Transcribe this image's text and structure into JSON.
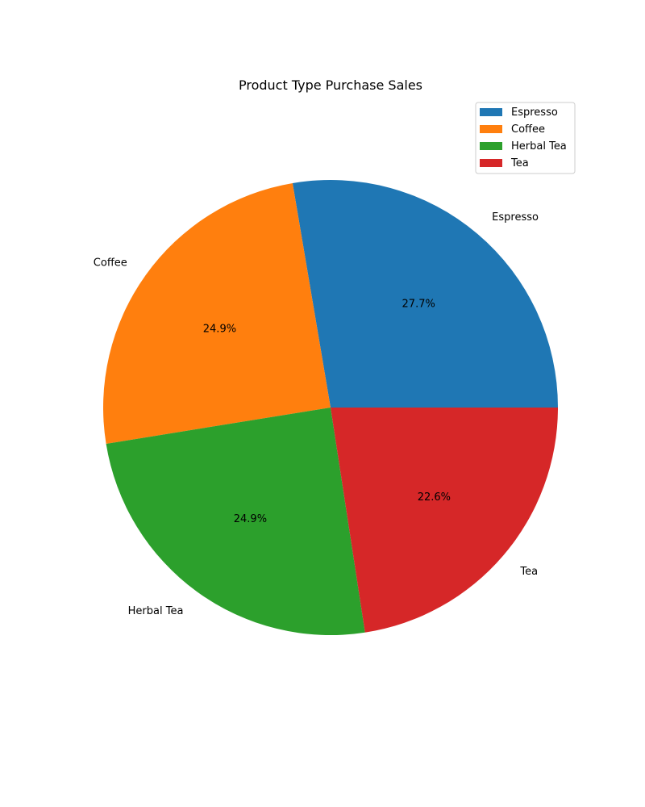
{
  "chart_data": {
    "type": "pie",
    "title": "Product Type Purchase Sales",
    "categories": [
      "Espresso",
      "Coffee",
      "Herbal Tea",
      "Tea"
    ],
    "values": [
      27.7,
      24.9,
      24.9,
      22.6
    ],
    "percent_labels": [
      "27.7%",
      "24.9%",
      "24.9%",
      "22.6%"
    ],
    "colors": [
      "#1f77b4",
      "#ff7f0e",
      "#2ca02c",
      "#d62728"
    ],
    "start_angle": 0,
    "direction": "counterclockwise",
    "legend": {
      "placement": "top-right",
      "entries": [
        "Espresso",
        "Coffee",
        "Herbal Tea",
        "Tea"
      ]
    }
  }
}
